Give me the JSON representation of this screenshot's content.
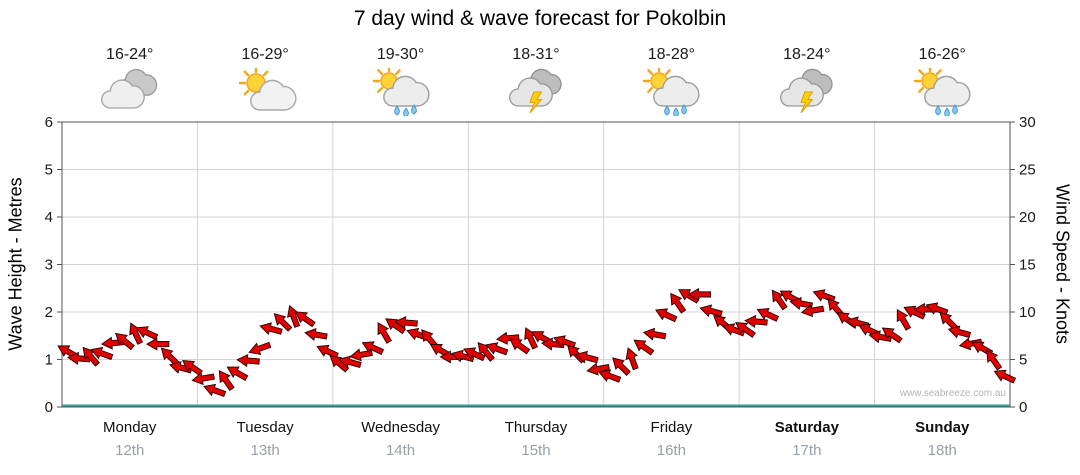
{
  "title": "7 day wind & wave forecast for Pokolbin",
  "watermark": "www.seabreeze.com.au",
  "axes": {
    "left_label": "Wave Height - Metres",
    "right_label": "Wind Speed - Knots",
    "left_ticks": [
      0,
      1,
      2,
      3,
      4,
      5,
      6
    ],
    "right_ticks": [
      0,
      5,
      10,
      15,
      20,
      25,
      30
    ]
  },
  "days": [
    {
      "name": "Monday",
      "date": "12th",
      "temp": "16-24°",
      "icon": "cloudy",
      "weekend": false
    },
    {
      "name": "Tuesday",
      "date": "13th",
      "temp": "16-29°",
      "icon": "partly-cloudy",
      "weekend": false
    },
    {
      "name": "Wednesday",
      "date": "14th",
      "temp": "19-30°",
      "icon": "sun-showers",
      "weekend": false
    },
    {
      "name": "Thursday",
      "date": "15th",
      "temp": "18-31°",
      "icon": "thunderstorm",
      "weekend": false
    },
    {
      "name": "Friday",
      "date": "16th",
      "temp": "18-28°",
      "icon": "sun-showers",
      "weekend": false
    },
    {
      "name": "Saturday",
      "date": "17th",
      "temp": "18-24°",
      "icon": "thunderstorm",
      "weekend": true
    },
    {
      "name": "Sunday",
      "date": "18th",
      "temp": "16-26°",
      "icon": "sun-showers",
      "weekend": true
    }
  ],
  "chart_data": {
    "type": "line",
    "title": "7 day wind & wave forecast for Pokolbin",
    "categories": [
      "Monday 12th",
      "Tuesday 13th",
      "Wednesday 14th",
      "Thursday 15th",
      "Friday 16th",
      "Saturday 17th",
      "Sunday 18th"
    ],
    "ylabel_left": "Wave Height - Metres",
    "ylabel_right": "Wind Speed - Knots",
    "ylim_left": [
      0,
      6
    ],
    "ylim_right": [
      0,
      30
    ],
    "grid": true,
    "legend": "none",
    "series": [
      {
        "name": "Wind Speed",
        "unit": "knots",
        "marker": "wind-arrow",
        "color": "#e00000",
        "values": [
          5.5,
          5.0,
          5.5,
          6.0,
          6.5,
          7.0,
          8.0,
          7.5,
          6.5,
          5.5,
          4.5,
          4.0,
          3.0,
          2.0,
          2.5,
          3.5,
          5.0,
          6.5,
          8.0,
          9.0,
          9.8,
          9.0,
          7.5,
          6.0,
          5.0,
          4.5,
          5.5,
          6.5,
          7.5,
          8.5,
          9.0,
          8.0,
          7.0,
          6.0,
          5.5,
          5.0,
          5.5,
          6.0,
          6.5,
          7.0,
          6.5,
          7.5,
          7.0,
          6.5,
          7.0,
          6.0,
          5.0,
          4.0,
          3.5,
          4.0,
          5.0,
          6.5,
          8.0,
          9.5,
          11.0,
          12.0,
          11.5,
          10.0,
          9.0,
          8.5,
          8.0,
          9.0,
          10.0,
          11.0,
          11.5,
          11.0,
          10.5,
          11.5,
          10.5,
          9.5,
          8.5,
          8.0,
          7.5,
          8.0,
          9.0,
          10.0,
          10.5,
          10.0,
          9.0,
          8.0,
          7.0,
          6.0,
          5.0,
          3.5
        ],
        "directions_deg": [
          210,
          185,
          230,
          200,
          175,
          220,
          245,
          205,
          180,
          225,
          195,
          215,
          170,
          200,
          235,
          210,
          185,
          160,
          195,
          225,
          250,
          215,
          190,
          205,
          220,
          195,
          170,
          205,
          240,
          215,
          185,
          200,
          230,
          210,
          180,
          195,
          205,
          230,
          200,
          175,
          215,
          245,
          210,
          185,
          200,
          225,
          195,
          170,
          200,
          225,
          250,
          215,
          190,
          205,
          235,
          210,
          180,
          195,
          220,
          200,
          215,
          185,
          205,
          235,
          210,
          190,
          170,
          200,
          230,
          215,
          195,
          205,
          190,
          215,
          240,
          205,
          180,
          200,
          225,
          195,
          170,
          210,
          235,
          205
        ]
      },
      {
        "name": "Wave Height",
        "unit": "m",
        "color": "#2f9f9f",
        "values_constant": 0
      }
    ]
  },
  "colors": {
    "arrow_fill": "#e00000",
    "arrow_outline": "#2a0000",
    "wave_line": "#2f9f9f",
    "grid": "#d4d4d4",
    "frame": "#555555",
    "date_text": "#98a0a8",
    "watermark_text": "#b4b4b4"
  }
}
